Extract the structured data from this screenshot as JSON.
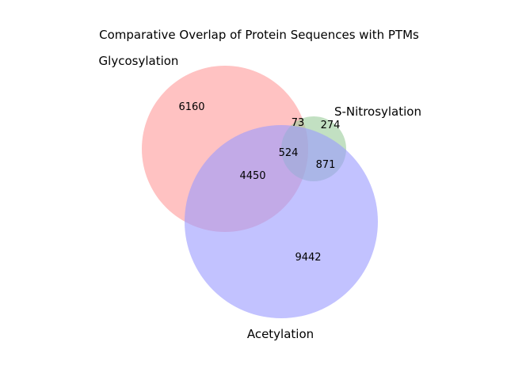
{
  "title": "Comparative Overlap of Protein Sequences with PTMs",
  "sets": [
    {
      "id": "glycosylation",
      "label": "Glycosylation",
      "color": "#ff9999"
    },
    {
      "id": "s_nitrosylation",
      "label": "S-Nitrosylation",
      "color": "#99cc99"
    },
    {
      "id": "acetylation",
      "label": "Acetylation",
      "color": "#9999ff"
    }
  ],
  "regions": {
    "glyco_only": "6160",
    "glyco_snitro": "73",
    "snitro_only": "274",
    "all_three": "524",
    "snitro_acetyl": "871",
    "glyco_acetyl": "4450",
    "acetyl_only": "9442"
  }
}
